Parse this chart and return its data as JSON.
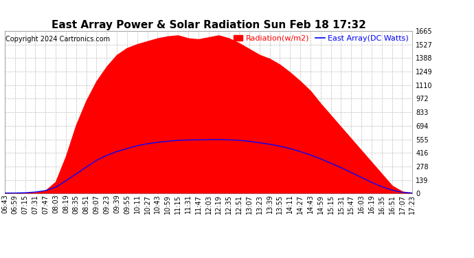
{
  "title": "East Array Power & Solar Radiation Sun Feb 18 17:32",
  "copyright": "Copyright 2024 Cartronics.com",
  "legend_radiation": "Radiation(w/m2)",
  "legend_east": "East Array(DC Watts)",
  "radiation_color": "#FF0000",
  "east_array_color": "#0000FF",
  "background_color": "#FFFFFF",
  "plot_bg_color": "#FFFFFF",
  "grid_color": "#BBBBBB",
  "y_ticks": [
    0.0,
    138.8,
    277.6,
    416.3,
    555.1,
    693.9,
    832.7,
    971.5,
    1110.2,
    1249.0,
    1387.8,
    1526.6,
    1665.4
  ],
  "x_labels": [
    "06:43",
    "06:59",
    "07:15",
    "07:31",
    "07:47",
    "08:03",
    "08:19",
    "08:35",
    "08:51",
    "09:07",
    "09:23",
    "09:39",
    "09:55",
    "10:11",
    "10:27",
    "10:43",
    "10:59",
    "11:15",
    "11:31",
    "11:47",
    "12:03",
    "12:19",
    "12:35",
    "12:51",
    "13:07",
    "13:23",
    "13:39",
    "13:55",
    "14:11",
    "14:27",
    "14:43",
    "14:59",
    "15:15",
    "15:31",
    "15:47",
    "16:03",
    "16:19",
    "16:35",
    "16:51",
    "17:07",
    "17:23"
  ],
  "y_max": 1665.4,
  "title_fontsize": 11,
  "copyright_fontsize": 7,
  "tick_fontsize": 7,
  "legend_fontsize": 8,
  "radiation_data": [
    5,
    5,
    5,
    10,
    30,
    120,
    380,
    700,
    950,
    1150,
    1300,
    1420,
    1490,
    1530,
    1560,
    1590,
    1610,
    1620,
    1590,
    1580,
    1600,
    1620,
    1590,
    1540,
    1480,
    1420,
    1380,
    1320,
    1240,
    1150,
    1050,
    920,
    800,
    680,
    560,
    440,
    320,
    200,
    80,
    20,
    5
  ],
  "east_data": [
    5,
    5,
    8,
    15,
    30,
    65,
    130,
    200,
    270,
    340,
    390,
    430,
    460,
    490,
    510,
    525,
    535,
    545,
    548,
    550,
    552,
    553,
    550,
    545,
    535,
    520,
    505,
    485,
    460,
    430,
    395,
    355,
    310,
    265,
    215,
    165,
    115,
    70,
    35,
    12,
    5
  ]
}
